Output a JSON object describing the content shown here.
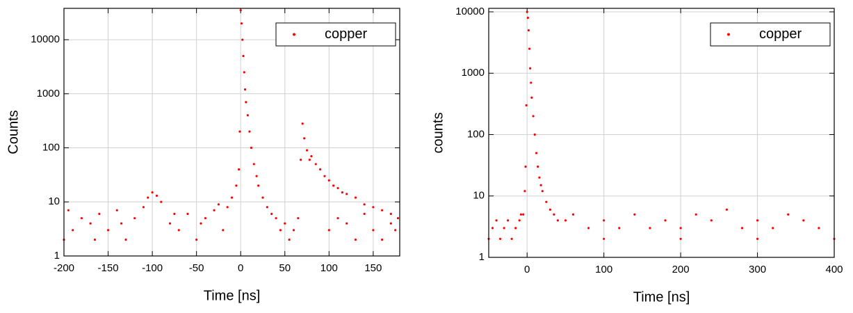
{
  "chart_data": [
    {
      "type": "scatter",
      "xlabel": "Time [ns]",
      "ylabel": "Counts",
      "yscale": "log",
      "grid": true,
      "legend": "upper right",
      "series": [
        {
          "name": "copper",
          "color": "#ff0000",
          "x": [
            -200,
            -190,
            -180,
            -170,
            -160,
            -150,
            -140,
            -130,
            -120,
            -110,
            -100,
            -90,
            -80,
            -70,
            -60,
            -50,
            -40,
            -30,
            -20,
            -195,
            -165,
            -135,
            -105,
            -95,
            -75,
            -45,
            -25,
            -15,
            -10,
            -5,
            -2,
            -1,
            0,
            1,
            2,
            3,
            4,
            5,
            6,
            8,
            10,
            12,
            15,
            18,
            20,
            25,
            30,
            35,
            40,
            45,
            50,
            55,
            60,
            65,
            68,
            70,
            72,
            75,
            78,
            80,
            85,
            90,
            95,
            100,
            105,
            110,
            115,
            120,
            130,
            140,
            150,
            160,
            170,
            178,
            100,
            110,
            120,
            130,
            140,
            150,
            160,
            170,
            175
          ],
          "values": [
            2,
            3,
            5,
            4,
            6,
            3,
            7,
            2,
            5,
            8,
            15,
            10,
            4,
            3,
            6,
            2,
            5,
            7,
            3,
            7,
            2,
            4,
            12,
            13,
            6,
            4,
            9,
            8,
            12,
            20,
            40,
            200,
            35000,
            20000,
            10000,
            5000,
            2500,
            1200,
            700,
            400,
            200,
            100,
            50,
            30,
            20,
            12,
            8,
            6,
            5,
            3,
            4,
            2,
            3,
            5,
            60,
            280,
            150,
            90,
            60,
            70,
            50,
            40,
            30,
            25,
            20,
            18,
            15,
            14,
            12,
            9,
            8,
            7,
            6,
            5,
            3,
            5,
            4,
            2,
            6,
            3,
            2,
            4,
            3
          ]
        }
      ],
      "xlim": [
        -200,
        180
      ],
      "xticks": [
        -200,
        -150,
        -100,
        -50,
        0,
        50,
        100,
        150
      ],
      "ylim": [
        1,
        38000
      ],
      "yticks": [
        1,
        10,
        100,
        1000,
        10000
      ]
    },
    {
      "type": "scatter",
      "xlabel": "Time [ns]",
      "ylabel": "counts",
      "yscale": "log",
      "grid": true,
      "legend": "upper right",
      "series": [
        {
          "name": "copper",
          "color": "#ff0000",
          "x": [
            -50,
            -45,
            -40,
            -35,
            -30,
            -25,
            -20,
            -15,
            -10,
            -8,
            -5,
            -3,
            -2,
            -1,
            0,
            1,
            2,
            3,
            4,
            5,
            6,
            8,
            10,
            12,
            14,
            16,
            18,
            20,
            25,
            30,
            35,
            40,
            50,
            60,
            80,
            100,
            120,
            140,
            160,
            180,
            200,
            220,
            240,
            260,
            280,
            300,
            320,
            340,
            360,
            380,
            400,
            100,
            200,
            300
          ],
          "values": [
            2,
            3,
            4,
            2,
            3,
            4,
            2,
            3,
            4,
            5,
            5,
            12,
            30,
            300,
            10000,
            8000,
            5000,
            2500,
            1200,
            700,
            400,
            200,
            100,
            50,
            30,
            20,
            15,
            12,
            8,
            6,
            5,
            4,
            4,
            5,
            3,
            4,
            3,
            5,
            3,
            4,
            3,
            5,
            4,
            6,
            3,
            4,
            3,
            5,
            4,
            3,
            2,
            2,
            2,
            2
          ]
        }
      ],
      "xlim": [
        -50,
        400
      ],
      "xticks": [
        0,
        100,
        200,
        300,
        400
      ],
      "ylim": [
        1,
        11400
      ],
      "yticks": [
        1,
        10,
        100,
        1000,
        10000
      ]
    }
  ]
}
